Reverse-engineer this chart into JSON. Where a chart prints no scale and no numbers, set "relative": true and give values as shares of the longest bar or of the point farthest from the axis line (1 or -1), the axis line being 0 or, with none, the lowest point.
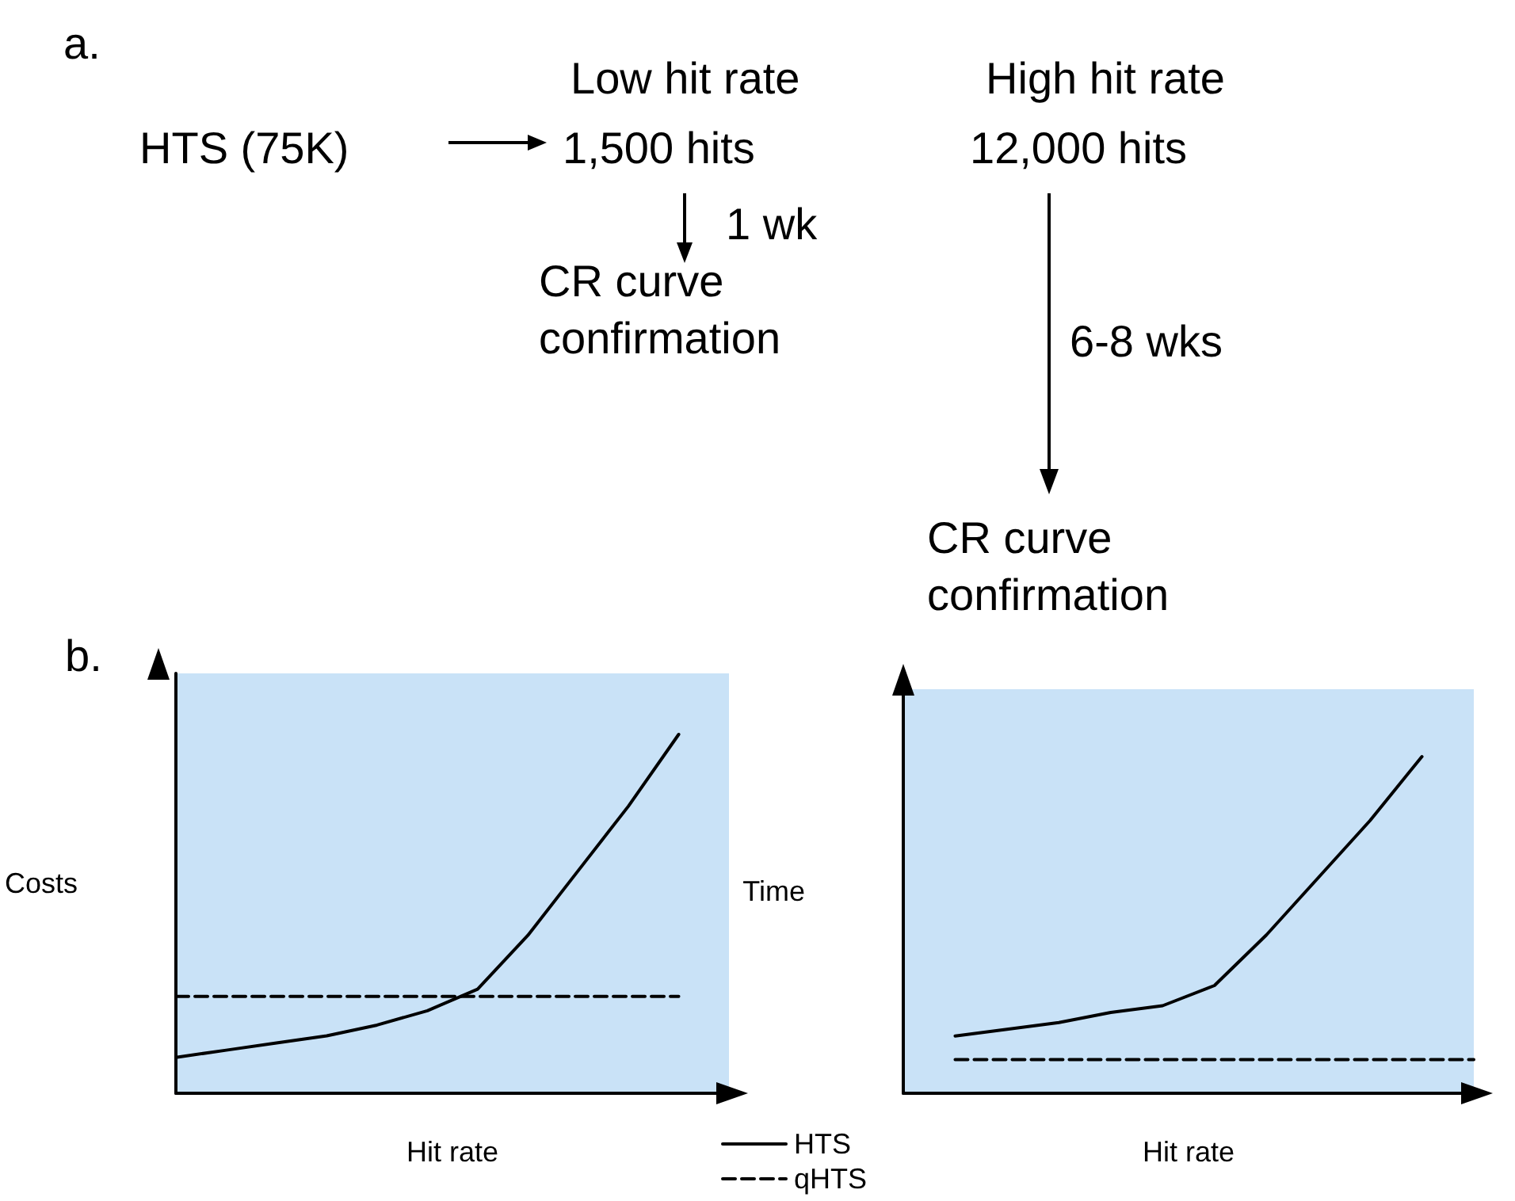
{
  "chart_data": [
    {
      "type": "other",
      "annotations": [
        "a.",
        "HTS (75K)",
        "Low hit rate",
        "1,500 hits",
        "1 wk",
        "CR curve confirmation",
        "High hit rate",
        "12,000 hits",
        "6-8 wks",
        "CR curve confirmation"
      ]
    },
    {
      "type": "line",
      "title": "b.",
      "ylabel": "Costs",
      "xlabel": "Hit rate",
      "relative": true,
      "marker": "none",
      "categories": [
        null,
        null,
        null,
        null,
        null,
        null,
        null,
        null,
        null,
        null,
        null,
        null
      ],
      "series": [
        {
          "color": "#000000",
          "line_style": "solid",
          "values": [
            0.1,
            0.12,
            0.14,
            0.16,
            0.19,
            0.23,
            0.29,
            0.44,
            0.62,
            0.8,
            1.0,
            null
          ]
        },
        {
          "color": "#000000",
          "line_style": "dashed",
          "values": [
            0.27,
            0.27,
            0.27,
            0.27,
            0.27,
            0.27,
            0.27,
            0.27,
            0.27,
            0.27,
            0.27,
            null
          ]
        }
      ]
    },
    {
      "type": "line",
      "ylabel": "Time",
      "xlabel": "Hit rate",
      "relative": true,
      "marker": "none",
      "legend": "bottom left",
      "categories": [
        null,
        null,
        null,
        null,
        null,
        null,
        null,
        null,
        null,
        null,
        null,
        null
      ],
      "series": [
        {
          "name": "HTS",
          "color": "#000000",
          "line_style": "solid",
          "values": [
            null,
            0.17,
            0.19,
            0.21,
            0.24,
            0.26,
            0.32,
            0.47,
            0.64,
            0.81,
            1.0,
            null
          ]
        },
        {
          "name": "qHTS",
          "color": "#000000",
          "line_style": "dashed",
          "values": [
            null,
            0.1,
            0.1,
            0.1,
            0.1,
            0.1,
            0.1,
            0.1,
            0.1,
            0.1,
            0.1,
            0.1
          ]
        }
      ]
    }
  ]
}
